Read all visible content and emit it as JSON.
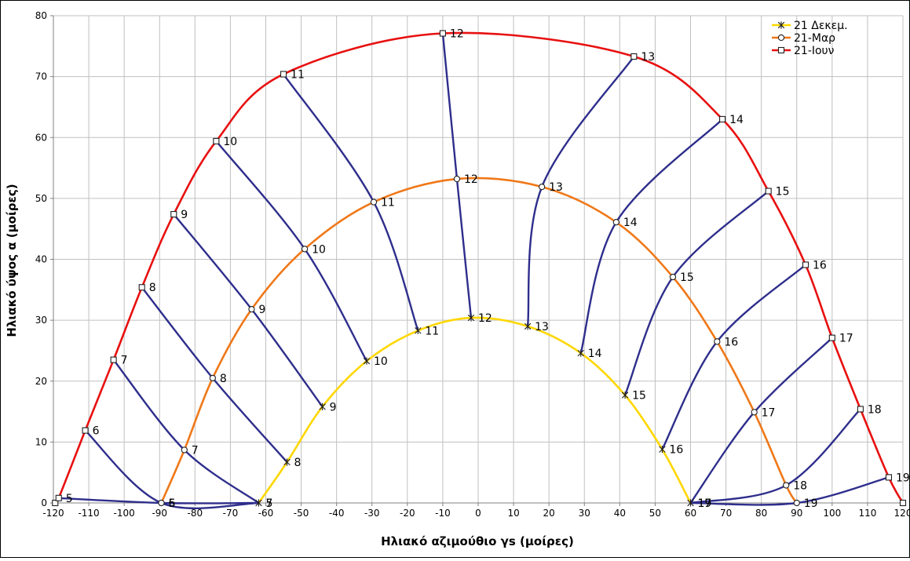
{
  "chart_data": {
    "type": "line",
    "xlabel": "Ηλιακό αζιμούθιο γs (μοίρες)",
    "ylabel": "Ηλιακό ύψος α (μοίρες)",
    "xlim": [
      -120,
      120
    ],
    "ylim": [
      0,
      80
    ],
    "x_ticks": [
      -120,
      -110,
      -100,
      -90,
      -80,
      -70,
      -60,
      -50,
      -40,
      -30,
      -20,
      -10,
      0,
      10,
      20,
      30,
      40,
      50,
      60,
      70,
      80,
      90,
      100,
      110,
      120
    ],
    "y_ticks": [
      0,
      10,
      20,
      30,
      40,
      50,
      60,
      70,
      80
    ],
    "grid": true,
    "legend_position": "top-right",
    "series": [
      {
        "name": "21 Δεκεμ.",
        "color": "#FFD700",
        "marker": "star",
        "points": [
          {
            "x": -62,
            "y": 0,
            "hour": "7"
          },
          {
            "x": -54,
            "y": 6.7,
            "hour": "8"
          },
          {
            "x": -44,
            "y": 15.8,
            "hour": "9"
          },
          {
            "x": -31.5,
            "y": 23.3,
            "hour": "10"
          },
          {
            "x": -17,
            "y": 28.3,
            "hour": "11"
          },
          {
            "x": -2,
            "y": 30.4,
            "hour": "12"
          },
          {
            "x": 14,
            "y": 29.0,
            "hour": "13"
          },
          {
            "x": 29,
            "y": 24.6,
            "hour": "14"
          },
          {
            "x": 41.5,
            "y": 17.7,
            "hour": "15"
          },
          {
            "x": 52,
            "y": 8.8,
            "hour": "16"
          },
          {
            "x": 60,
            "y": 0,
            "hour": "17"
          }
        ]
      },
      {
        "name": "21-Μαρ",
        "color": "#F07818",
        "marker": "circle",
        "points": [
          {
            "x": -89.5,
            "y": 0,
            "hour": "6"
          },
          {
            "x": -83,
            "y": 8.7,
            "hour": "7"
          },
          {
            "x": -75,
            "y": 20.5,
            "hour": "8"
          },
          {
            "x": -64,
            "y": 31.8,
            "hour": "9"
          },
          {
            "x": -49,
            "y": 41.7,
            "hour": "10"
          },
          {
            "x": -29.5,
            "y": 49.4,
            "hour": "11"
          },
          {
            "x": -6,
            "y": 53.2,
            "hour": "12"
          },
          {
            "x": 18,
            "y": 51.9,
            "hour": "13"
          },
          {
            "x": 39,
            "y": 46.1,
            "hour": "14"
          },
          {
            "x": 55,
            "y": 37.1,
            "hour": "15"
          },
          {
            "x": 67.5,
            "y": 26.5,
            "hour": "16"
          },
          {
            "x": 78,
            "y": 14.9,
            "hour": "17"
          },
          {
            "x": 87,
            "y": 2.9,
            "hour": "18"
          },
          {
            "x": 90,
            "y": 0,
            "hour": "19"
          }
        ]
      },
      {
        "name": "21-Ιουν",
        "color": "#E81010",
        "marker": "square",
        "points": [
          {
            "x": -119.5,
            "y": 0,
            "hour": ""
          },
          {
            "x": -118.5,
            "y": 0.8,
            "hour": "5"
          },
          {
            "x": -111,
            "y": 11.9,
            "hour": "6"
          },
          {
            "x": -103,
            "y": 23.5,
            "hour": "7"
          },
          {
            "x": -95,
            "y": 35.4,
            "hour": "8"
          },
          {
            "x": -86,
            "y": 47.4,
            "hour": "9"
          },
          {
            "x": -74,
            "y": 59.4,
            "hour": "10"
          },
          {
            "x": -55,
            "y": 70.4,
            "hour": "11"
          },
          {
            "x": -10,
            "y": 77.1,
            "hour": "12"
          },
          {
            "x": 44,
            "y": 73.3,
            "hour": "13"
          },
          {
            "x": 69,
            "y": 63.0,
            "hour": "14"
          },
          {
            "x": 82,
            "y": 51.2,
            "hour": "15"
          },
          {
            "x": 92.5,
            "y": 39.1,
            "hour": "16"
          },
          {
            "x": 100,
            "y": 27.1,
            "hour": "17"
          },
          {
            "x": 108,
            "y": 15.4,
            "hour": "18"
          },
          {
            "x": 116,
            "y": 4.2,
            "hour": "19"
          },
          {
            "x": 120,
            "y": 0,
            "hour": ""
          }
        ]
      }
    ],
    "hour_lines_color": "#2E2E8C",
    "hour_lines": [
      {
        "hour": "5",
        "points": [
          [
            -118.5,
            0.8
          ],
          [
            -89.5,
            0
          ],
          [
            -62,
            0
          ]
        ]
      },
      {
        "hour": "6",
        "points": [
          [
            -111,
            11.9
          ],
          [
            -89.5,
            0
          ],
          [
            -62,
            0
          ]
        ]
      },
      {
        "hour": "7",
        "points": [
          [
            -103,
            23.5
          ],
          [
            -83,
            8.7
          ],
          [
            -62,
            0
          ]
        ]
      },
      {
        "hour": "8",
        "points": [
          [
            -95,
            35.4
          ],
          [
            -75,
            20.5
          ],
          [
            -54,
            6.7
          ]
        ]
      },
      {
        "hour": "9",
        "points": [
          [
            -86,
            47.4
          ],
          [
            -64,
            31.8
          ],
          [
            -44,
            15.8
          ]
        ]
      },
      {
        "hour": "10",
        "points": [
          [
            -74,
            59.4
          ],
          [
            -49,
            41.7
          ],
          [
            -31.5,
            23.3
          ]
        ]
      },
      {
        "hour": "11",
        "points": [
          [
            -55,
            70.4
          ],
          [
            -29.5,
            49.4
          ],
          [
            -17,
            28.3
          ]
        ]
      },
      {
        "hour": "12",
        "points": [
          [
            -10,
            77.1
          ],
          [
            -6,
            53.2
          ],
          [
            -2,
            30.4
          ]
        ]
      },
      {
        "hour": "13",
        "points": [
          [
            44,
            73.3
          ],
          [
            18,
            51.9
          ],
          [
            14,
            29.0
          ]
        ]
      },
      {
        "hour": "14",
        "points": [
          [
            69,
            63.0
          ],
          [
            39,
            46.1
          ],
          [
            29,
            24.6
          ]
        ]
      },
      {
        "hour": "15",
        "points": [
          [
            82,
            51.2
          ],
          [
            55,
            37.1
          ],
          [
            41.5,
            17.7
          ]
        ]
      },
      {
        "hour": "16",
        "points": [
          [
            92.5,
            39.1
          ],
          [
            67.5,
            26.5
          ],
          [
            52,
            8.8
          ]
        ]
      },
      {
        "hour": "17",
        "points": [
          [
            100,
            27.1
          ],
          [
            78,
            14.9
          ],
          [
            60,
            0
          ]
        ]
      },
      {
        "hour": "18",
        "points": [
          [
            108,
            15.4
          ],
          [
            87,
            2.9
          ],
          [
            60,
            0
          ]
        ]
      },
      {
        "hour": "19",
        "points": [
          [
            116,
            4.2
          ],
          [
            90,
            0
          ],
          [
            60,
            0
          ]
        ]
      }
    ],
    "overlap_labels": [
      {
        "x": -89.5,
        "y": 0,
        "text": "5"
      },
      {
        "x": -62,
        "y": 0,
        "text": "5"
      },
      {
        "x": 60,
        "y": 0,
        "text": "19"
      },
      {
        "x": 120,
        "y": 0,
        "text": "19"
      }
    ]
  }
}
